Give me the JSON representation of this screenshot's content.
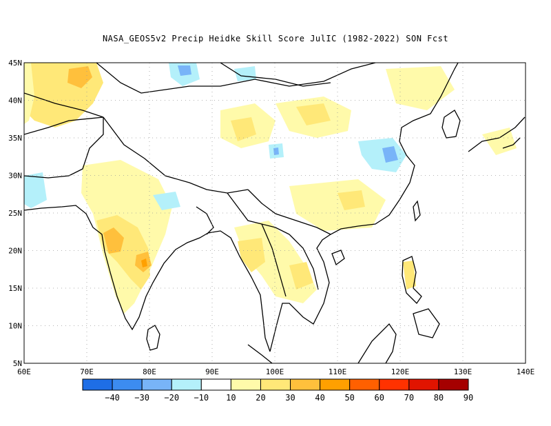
{
  "title": "NASA_GEOS5v2 Precip Heidke Skill Score JulIC (1982-2022) SON Fcst",
  "map": {
    "lon_range": [
      60,
      140
    ],
    "lat_range": [
      5,
      45
    ],
    "lon_ticks": [
      "60E",
      "70E",
      "80E",
      "90E",
      "100E",
      "110E",
      "120E",
      "130E",
      "140E"
    ],
    "lat_ticks": [
      "5N",
      "10N",
      "15N",
      "20N",
      "25N",
      "30N",
      "35N",
      "40N",
      "45N"
    ],
    "grid": "dotted"
  },
  "colorbar": {
    "colors": [
      "#1e6ee6",
      "#3c8cf0",
      "#78b4f8",
      "#b4f0fa",
      "#ffffff",
      "#fffaaa",
      "#ffe878",
      "#ffc03c",
      "#ffa000",
      "#ff6000",
      "#ff3200",
      "#e11400",
      "#a50000"
    ],
    "labels": [
      "-40",
      "-30",
      "-20",
      "-10",
      "10",
      "20",
      "30",
      "40",
      "50",
      "60",
      "70",
      "80",
      "90"
    ]
  },
  "chart_data": {
    "type": "heatmap",
    "title": "NASA_GEOS5v2 Precip Heidke Skill Score JulIC (1982-2022) SON Fcst",
    "xlim": [
      60,
      140
    ],
    "ylim": [
      5,
      45
    ],
    "levels": [
      -40,
      -30,
      -20,
      -10,
      10,
      20,
      30,
      40,
      50,
      60,
      70,
      80,
      90
    ],
    "regions": [
      {
        "lon": [
          60,
          70
        ],
        "lat": [
          35,
          45
        ],
        "score": 20
      },
      {
        "lon": [
          66,
          70
        ],
        "lat": [
          41,
          44
        ],
        "score": 30
      },
      {
        "lon": [
          73,
          80
        ],
        "lat": [
          17,
          23
        ],
        "score": 30
      },
      {
        "lon": [
          78,
          80
        ],
        "lat": [
          17,
          19
        ],
        "score": 40
      },
      {
        "lon": [
          74,
          85
        ],
        "lat": [
          12,
          28
        ],
        "score": 20
      },
      {
        "lon": [
          95,
          100
        ],
        "lat": [
          15,
          22
        ],
        "score": 20
      },
      {
        "lon": [
          100,
          103
        ],
        "lat": [
          14,
          18
        ],
        "score": 20
      },
      {
        "lon": [
          100,
          112
        ],
        "lat": [
          35,
          39
        ],
        "score": 10
      },
      {
        "lon": [
          120,
          122
        ],
        "lat": [
          15,
          18
        ],
        "score": 20
      },
      {
        "lon": [
          116,
          119
        ],
        "lat": [
          31,
          34
        ],
        "score": -20
      },
      {
        "lon": [
          87,
          89
        ],
        "lat": [
          43,
          45
        ],
        "score": -20
      },
      {
        "lon": [
          81,
          85
        ],
        "lat": [
          24,
          27
        ],
        "score": -10
      },
      {
        "lon": [
          60,
          62
        ],
        "lat": [
          26,
          31
        ],
        "score": -10
      }
    ]
  }
}
